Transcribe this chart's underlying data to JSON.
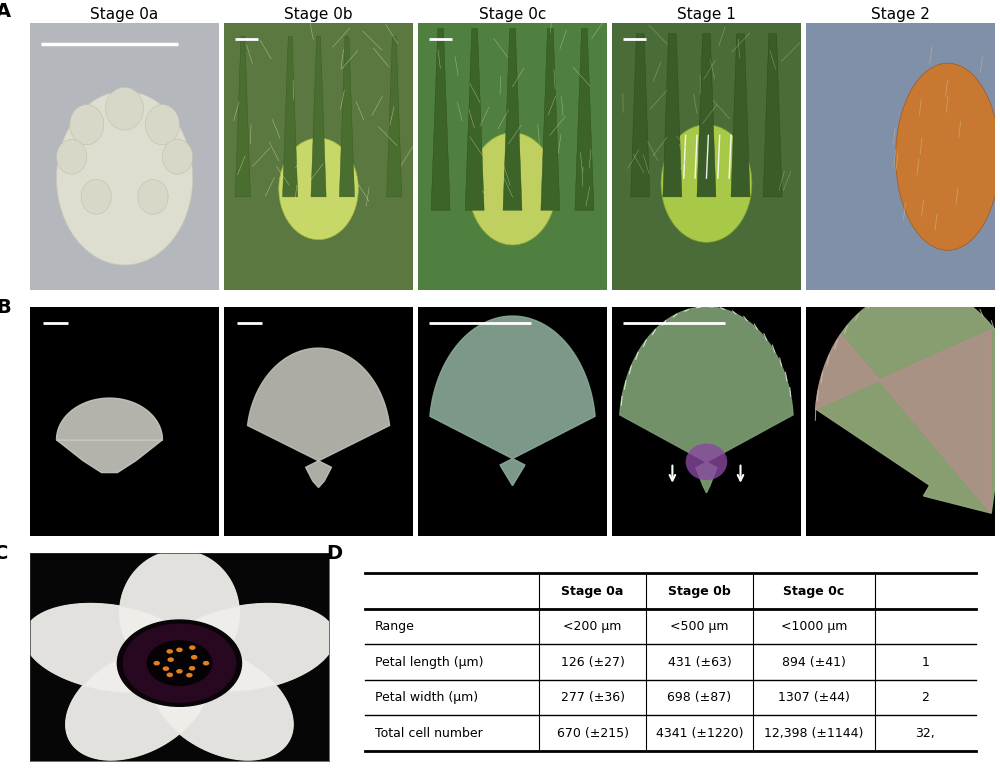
{
  "panel_label_fontsize": 14,
  "panel_label_weight": "bold",
  "stage_labels": [
    "Stage 0a",
    "Stage 0b",
    "Stage 0c",
    "Stage 1",
    "Stage 2"
  ],
  "stage_label_fontsize": 11,
  "panel_A_avg_colors": [
    "#b8bcc0",
    "#5a7a45",
    "#507040",
    "#4a6c3a",
    "#8090a8"
  ],
  "panel_B_petal_colors": [
    "#c8c8c0",
    "#c0c0b8",
    "#8aaa98",
    "#8aaa80",
    "#9ab898"
  ],
  "table_fontsize": 9,
  "bg_color": "#ffffff",
  "figure_width": 10.0,
  "figure_height": 7.69
}
